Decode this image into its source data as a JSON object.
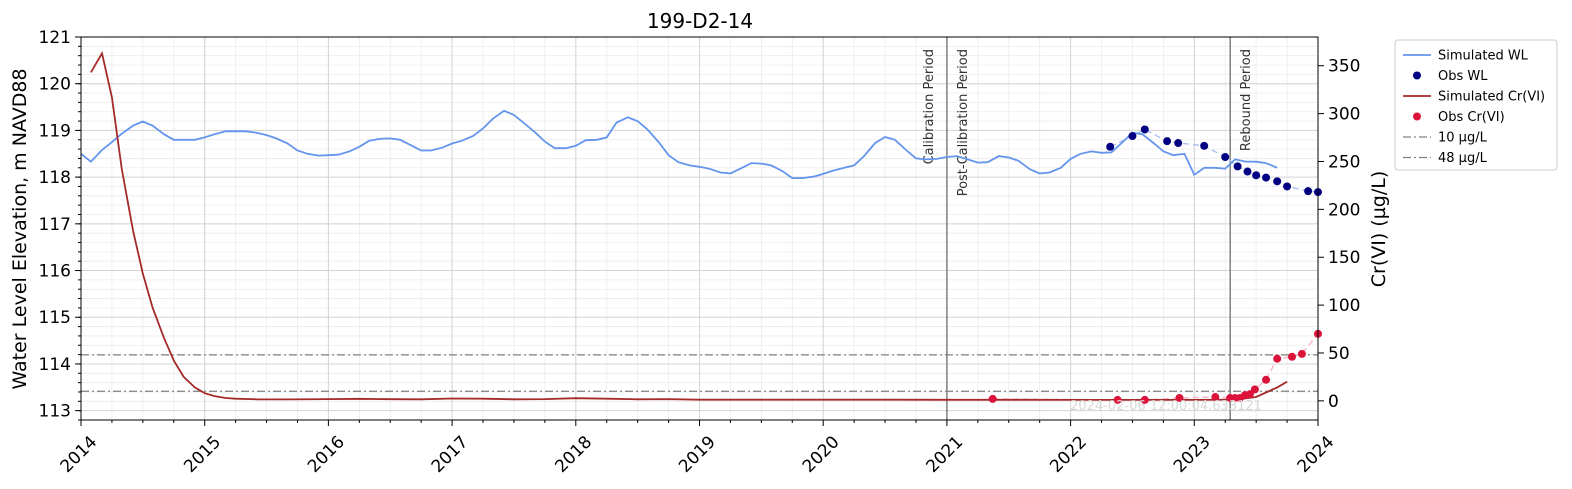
{
  "chart_data": {
    "type": "line",
    "title": "199-D2-14",
    "xlabel": "",
    "ylabel": "Water Level Elevation, m NAVD88",
    "y2label": "Cr(VI) (µg/L)",
    "xlim": [
      2014.0,
      2024.0
    ],
    "ylim": [
      112.8,
      121.0
    ],
    "y2lim": [
      -20,
      380
    ],
    "x_ticks": [
      2014,
      2015,
      2016,
      2017,
      2018,
      2019,
      2020,
      2021,
      2022,
      2023,
      2024
    ],
    "x_tick_labels": [
      "2014",
      "2015",
      "2016",
      "2017",
      "2018",
      "2019",
      "2020",
      "2021",
      "2022",
      "2023",
      "2024"
    ],
    "y_ticks": [
      113,
      114,
      115,
      116,
      117,
      118,
      119,
      120,
      121
    ],
    "y_tick_labels": [
      "113",
      "114",
      "115",
      "116",
      "117",
      "118",
      "119",
      "120",
      "121"
    ],
    "y2_ticks": [
      0,
      50,
      100,
      150,
      200,
      250,
      300,
      350
    ],
    "y2_tick_labels": [
      "0",
      "50",
      "100",
      "150",
      "200",
      "250",
      "300",
      "350"
    ],
    "grid": true,
    "legend_position": "outside-top-right",
    "colors": {
      "sim_wl": "#6495ed",
      "obs_wl": "#000080",
      "sim_cr": "#a52a2a",
      "obs_cr": "#dc143c",
      "threshold": "#808080",
      "period_line": "#808080"
    },
    "period_lines": [
      {
        "x": 2021.0,
        "label": "Calibration Period",
        "side": "left"
      },
      {
        "x": 2021.0,
        "label": "Post-Calibration Period",
        "side": "right"
      },
      {
        "x": 2023.29,
        "label": "Rebound Period",
        "side": "right"
      }
    ],
    "thresholds": [
      {
        "name": "10 µg/L",
        "y2": 10
      },
      {
        "name": "48 µg/L",
        "y2": 48
      }
    ],
    "timestamp_note": "2024-02-06 12:00:04.633121",
    "series": [
      {
        "name": "Simulated WL",
        "axis": "left",
        "kind": "line",
        "x": [
          2014.0,
          2014.08,
          2014.17,
          2014.25,
          2014.33,
          2014.42,
          2014.5,
          2014.58,
          2014.67,
          2014.75,
          2014.83,
          2014.92,
          2015.0,
          2015.08,
          2015.17,
          2015.25,
          2015.33,
          2015.42,
          2015.5,
          2015.58,
          2015.67,
          2015.75,
          2015.83,
          2015.92,
          2016.0,
          2016.08,
          2016.17,
          2016.25,
          2016.33,
          2016.42,
          2016.5,
          2016.58,
          2016.67,
          2016.75,
          2016.83,
          2016.92,
          2017.0,
          2017.08,
          2017.17,
          2017.25,
          2017.33,
          2017.42,
          2017.5,
          2017.58,
          2017.67,
          2017.75,
          2017.83,
          2017.92,
          2018.0,
          2018.08,
          2018.17,
          2018.25,
          2018.33,
          2018.42,
          2018.5,
          2018.58,
          2018.67,
          2018.75,
          2018.83,
          2018.92,
          2019.0,
          2019.08,
          2019.17,
          2019.25,
          2019.33,
          2019.42,
          2019.5,
          2019.58,
          2019.67,
          2019.75,
          2019.83,
          2019.92,
          2020.0,
          2020.08,
          2020.17,
          2020.25,
          2020.33,
          2020.42,
          2020.5,
          2020.58,
          2020.67,
          2020.75,
          2020.83,
          2020.92,
          2021.0,
          2021.08,
          2021.17,
          2021.25,
          2021.33,
          2021.42,
          2021.5,
          2021.58,
          2021.67,
          2021.75,
          2021.83,
          2021.92,
          2022.0,
          2022.08,
          2022.17,
          2022.25,
          2022.33,
          2022.42,
          2022.5,
          2022.58,
          2022.67,
          2022.75,
          2022.83,
          2022.92,
          2023.0,
          2023.08,
          2023.17,
          2023.25,
          2023.33,
          2023.42,
          2023.5,
          2023.58,
          2023.67
        ],
        "values": [
          118.5,
          118.33,
          118.58,
          118.75,
          118.93,
          119.1,
          119.19,
          119.1,
          118.92,
          118.8,
          118.8,
          118.8,
          118.85,
          118.92,
          118.98,
          118.98,
          118.98,
          118.95,
          118.9,
          118.83,
          118.72,
          118.57,
          118.5,
          118.46,
          118.47,
          118.48,
          118.55,
          118.65,
          118.78,
          118.82,
          118.83,
          118.8,
          118.68,
          118.57,
          118.57,
          118.63,
          118.72,
          118.78,
          118.88,
          119.04,
          119.25,
          119.42,
          119.33,
          119.16,
          118.96,
          118.76,
          118.62,
          118.62,
          118.67,
          118.79,
          118.8,
          118.85,
          119.17,
          119.28,
          119.2,
          119.02,
          118.75,
          118.47,
          118.32,
          118.25,
          118.22,
          118.18,
          118.1,
          118.08,
          118.18,
          118.3,
          118.29,
          118.25,
          118.13,
          117.98,
          117.98,
          118.01,
          118.07,
          118.14,
          118.2,
          118.25,
          118.45,
          118.73,
          118.86,
          118.8,
          118.58,
          118.4,
          118.38,
          118.39,
          118.43,
          118.45,
          118.38,
          118.31,
          118.32,
          118.45,
          118.42,
          118.35,
          118.17,
          118.08,
          118.1,
          118.2,
          118.39,
          118.5,
          118.55,
          118.52,
          118.53,
          118.75,
          118.95,
          118.92,
          118.73,
          118.55,
          118.47,
          118.5,
          118.05,
          118.2,
          118.2,
          118.18,
          118.38,
          118.33,
          118.33,
          118.3,
          118.2
        ]
      },
      {
        "name": "Obs WL",
        "axis": "left",
        "kind": "scatter",
        "x": [
          2022.32,
          2022.5,
          2022.6,
          2022.78,
          2022.87,
          2023.08,
          2023.25,
          2023.35,
          2023.43,
          2023.5,
          2023.58,
          2023.67,
          2023.75,
          2023.92,
          2024.0
        ],
        "values": [
          118.65,
          118.88,
          119.02,
          118.77,
          118.73,
          118.67,
          118.43,
          118.23,
          118.12,
          118.04,
          117.99,
          117.91,
          117.8,
          117.7,
          117.68
        ]
      },
      {
        "name": "Simulated Cr(VI)",
        "axis": "right",
        "kind": "line",
        "x": [
          2014.08,
          2014.17,
          2014.25,
          2014.33,
          2014.42,
          2014.5,
          2014.58,
          2014.67,
          2014.75,
          2014.83,
          2014.92,
          2015.0,
          2015.08,
          2015.17,
          2015.25,
          2015.42,
          2015.67,
          2016.0,
          2016.25,
          2016.5,
          2016.75,
          2017.0,
          2017.25,
          2017.5,
          2017.75,
          2018.0,
          2018.25,
          2018.5,
          2018.75,
          2019.0,
          2019.5,
          2020.0,
          2020.5,
          2021.0,
          2021.5,
          2022.0,
          2022.5,
          2023.0,
          2023.33,
          2023.5,
          2023.67,
          2023.75
        ],
        "values": [
          343,
          363,
          317,
          242,
          178,
          133,
          97,
          66,
          42,
          25,
          14,
          8,
          5,
          3,
          2.2,
          1.6,
          1.5,
          1.8,
          2.1,
          1.7,
          1.6,
          2.5,
          2.2,
          1.6,
          1.8,
          2.8,
          2.2,
          1.6,
          1.8,
          1.2,
          1.2,
          1.2,
          1.2,
          1.1,
          1.1,
          1.0,
          1.0,
          1.0,
          1.2,
          4,
          14,
          20
        ]
      },
      {
        "name": "Obs Cr(VI)",
        "axis": "right",
        "kind": "scatter",
        "x": [
          2021.37,
          2022.38,
          2022.6,
          2022.88,
          2023.17,
          2023.29,
          2023.33,
          2023.37,
          2023.41,
          2023.45,
          2023.49,
          2023.58,
          2023.67,
          2023.79,
          2023.87,
          2024.0
        ],
        "values": [
          2,
          1,
          1,
          3,
          4,
          3,
          3,
          3,
          6,
          7,
          12,
          22,
          44,
          46,
          49,
          70
        ]
      }
    ]
  }
}
